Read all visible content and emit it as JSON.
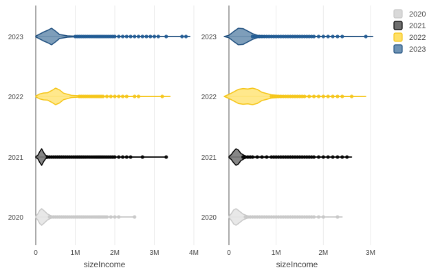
{
  "chart_data": {
    "type": "violin",
    "categories": [
      "2020",
      "2021",
      "2022",
      "2023"
    ],
    "legend": {
      "position": "top-right",
      "entries": [
        {
          "label": "2020",
          "color": "#d9d9d9"
        },
        {
          "label": "2021",
          "color": "#6e6e6e"
        },
        {
          "label": "2022",
          "color": "#ffe066"
        },
        {
          "label": "2023",
          "color": "#6f93b4"
        }
      ]
    },
    "series_colors": {
      "2020": {
        "fill": "#e6e6e6",
        "line": "#c8c8c8",
        "point": "#c8c8c8"
      },
      "2021": {
        "fill": "#7a7a7a",
        "line": "#000000",
        "point": "#000000"
      },
      "2022": {
        "fill": "#ffe680",
        "line": "#f5c518",
        "point": "#f5c518"
      },
      "2023": {
        "fill": "#7093b3",
        "line": "#1f4f7f",
        "point": "#1f5a94"
      }
    },
    "panels": [
      {
        "xlabel": "sizeIncome",
        "xlim": [
          0,
          4000000
        ],
        "xticks": [
          {
            "value": 0,
            "label": "0"
          },
          {
            "value": 1000000,
            "label": "1M"
          },
          {
            "value": 2000000,
            "label": "2M"
          },
          {
            "value": 3000000,
            "label": "3M"
          },
          {
            "value": 4000000,
            "label": "4M"
          }
        ],
        "series": [
          {
            "category": "2020",
            "min": 0,
            "max": 2500000,
            "density": [
              [
                0,
                0.08
              ],
              [
                50000,
                0.35
              ],
              [
                100000,
                0.8
              ],
              [
                150000,
                1.0
              ],
              [
                200000,
                0.8
              ],
              [
                300000,
                0.35
              ],
              [
                400000,
                0.12
              ],
              [
                600000,
                0.06
              ],
              [
                800000,
                0.03
              ],
              [
                1000000,
                0.02
              ],
              [
                1500000,
                0.01
              ],
              [
                2500000,
                0
              ]
            ],
            "outliers": [
              350000,
              400000,
              450000,
              500000,
              550000,
              600000,
              650000,
              700000,
              750000,
              800000,
              850000,
              900000,
              950000,
              1000000,
              1050000,
              1100000,
              1150000,
              1200000,
              1250000,
              1300000,
              1350000,
              1400000,
              1450000,
              1500000,
              1550000,
              1600000,
              1650000,
              1700000,
              1750000,
              1800000,
              1900000,
              2000000,
              2100000,
              2500000
            ]
          },
          {
            "category": "2021",
            "min": 0,
            "max": 3300000,
            "density": [
              [
                0,
                0.06
              ],
              [
                50000,
                0.2
              ],
              [
                100000,
                0.65
              ],
              [
                150000,
                1.0
              ],
              [
                200000,
                0.55
              ],
              [
                250000,
                0.2
              ],
              [
                350000,
                0.06
              ],
              [
                600000,
                0.03
              ],
              [
                1000000,
                0.02
              ],
              [
                2000000,
                0.01
              ],
              [
                3300000,
                0
              ]
            ],
            "outliers": [
              300000,
              350000,
              400000,
              450000,
              500000,
              550000,
              600000,
              650000,
              700000,
              750000,
              800000,
              850000,
              900000,
              950000,
              1000000,
              1050000,
              1100000,
              1150000,
              1200000,
              1250000,
              1300000,
              1350000,
              1400000,
              1450000,
              1500000,
              1550000,
              1600000,
              1650000,
              1700000,
              1750000,
              1800000,
              1850000,
              1900000,
              1950000,
              2000000,
              2100000,
              2200000,
              2300000,
              2400000,
              2700000,
              3300000
            ]
          },
          {
            "category": "2022",
            "min": 0,
            "max": 3400000,
            "density": [
              [
                0,
                0.05
              ],
              [
                100000,
                0.3
              ],
              [
                200000,
                0.42
              ],
              [
                300000,
                0.45
              ],
              [
                400000,
                0.7
              ],
              [
                500000,
                1.0
              ],
              [
                600000,
                0.8
              ],
              [
                700000,
                0.4
              ],
              [
                900000,
                0.13
              ],
              [
                1200000,
                0.05
              ],
              [
                2000000,
                0.02
              ],
              [
                3400000,
                0
              ]
            ],
            "outliers": [
              1100000,
              1150000,
              1200000,
              1250000,
              1300000,
              1350000,
              1400000,
              1450000,
              1500000,
              1550000,
              1600000,
              1650000,
              1700000,
              1800000,
              1900000,
              2000000,
              2100000,
              2200000,
              2300000,
              2500000,
              2600000,
              3200000
            ]
          },
          {
            "category": "2023",
            "min": 0,
            "max": 3900000,
            "density": [
              [
                0,
                0.05
              ],
              [
                100000,
                0.3
              ],
              [
                200000,
                0.55
              ],
              [
                300000,
                0.75
              ],
              [
                400000,
                1.0
              ],
              [
                500000,
                0.65
              ],
              [
                600000,
                0.25
              ],
              [
                800000,
                0.08
              ],
              [
                1000000,
                0.04
              ],
              [
                2000000,
                0.02
              ],
              [
                3900000,
                0
              ]
            ],
            "outliers": [
              1000000,
              1050000,
              1100000,
              1150000,
              1200000,
              1250000,
              1300000,
              1350000,
              1400000,
              1450000,
              1500000,
              1550000,
              1600000,
              1650000,
              1700000,
              1750000,
              1800000,
              1850000,
              1900000,
              1950000,
              2000000,
              2100000,
              2200000,
              2300000,
              2400000,
              2500000,
              2600000,
              2700000,
              2800000,
              2900000,
              3000000,
              3100000,
              3300000,
              3700000,
              3800000
            ]
          }
        ]
      },
      {
        "xlabel": "sizeIncome",
        "xlim": [
          0,
          3000000
        ],
        "xticks": [
          {
            "value": 0,
            "label": "0"
          },
          {
            "value": 1000000,
            "label": "1M"
          },
          {
            "value": 2000000,
            "label": "2M"
          },
          {
            "value": 3000000,
            "label": "3M"
          }
        ],
        "series": [
          {
            "category": "2020",
            "min": 0,
            "max": 2400000,
            "density": [
              [
                0,
                0.08
              ],
              [
                50000,
                0.4
              ],
              [
                100000,
                0.85
              ],
              [
                150000,
                1.0
              ],
              [
                200000,
                0.8
              ],
              [
                300000,
                0.35
              ],
              [
                400000,
                0.12
              ],
              [
                600000,
                0.06
              ],
              [
                1000000,
                0.02
              ],
              [
                1500000,
                0.01
              ],
              [
                2400000,
                0
              ]
            ],
            "outliers": [
              350000,
              400000,
              450000,
              500000,
              550000,
              600000,
              650000,
              700000,
              750000,
              800000,
              850000,
              900000,
              950000,
              1000000,
              1050000,
              1100000,
              1150000,
              1200000,
              1250000,
              1300000,
              1350000,
              1400000,
              1450000,
              1500000,
              1550000,
              1600000,
              1650000,
              1700000,
              1750000,
              1800000,
              1900000,
              2000000,
              2300000
            ]
          },
          {
            "category": "2021",
            "min": 0,
            "max": 2600000,
            "density": [
              [
                0,
                0.06
              ],
              [
                50000,
                0.3
              ],
              [
                100000,
                0.7
              ],
              [
                150000,
                1.0
              ],
              [
                200000,
                0.85
              ],
              [
                250000,
                0.45
              ],
              [
                350000,
                0.12
              ],
              [
                500000,
                0.05
              ],
              [
                1000000,
                0.02
              ],
              [
                2000000,
                0.01
              ],
              [
                2600000,
                0
              ]
            ],
            "outliers": [
              300000,
              350000,
              400000,
              450000,
              500000,
              600000,
              700000,
              800000,
              900000,
              950000,
              1000000,
              1050000,
              1100000,
              1150000,
              1200000,
              1250000,
              1300000,
              1350000,
              1400000,
              1450000,
              1500000,
              1550000,
              1600000,
              1650000,
              1700000,
              1750000,
              1800000,
              1900000,
              2000000,
              2100000,
              2200000,
              2300000,
              2400000,
              2500000
            ]
          },
          {
            "category": "2022",
            "min": -100000,
            "max": 2900000,
            "density": [
              [
                -100000,
                0
              ],
              [
                0,
                0.25
              ],
              [
                100000,
                0.55
              ],
              [
                200000,
                0.85
              ],
              [
                300000,
                0.95
              ],
              [
                400000,
                0.9
              ],
              [
                500000,
                1.0
              ],
              [
                600000,
                0.85
              ],
              [
                700000,
                0.5
              ],
              [
                900000,
                0.2
              ],
              [
                1200000,
                0.07
              ],
              [
                2000000,
                0.02
              ],
              [
                2900000,
                0
              ]
            ],
            "outliers": [
              900000,
              950000,
              1000000,
              1050000,
              1100000,
              1150000,
              1200000,
              1250000,
              1300000,
              1350000,
              1400000,
              1450000,
              1500000,
              1550000,
              1600000,
              1700000,
              1800000,
              1900000,
              2000000,
              2100000,
              2200000,
              2300000,
              2400000,
              2600000
            ]
          },
          {
            "category": "2023",
            "min": -100000,
            "max": 3050000,
            "density": [
              [
                -100000,
                0
              ],
              [
                0,
                0.15
              ],
              [
                100000,
                0.6
              ],
              [
                200000,
                1.0
              ],
              [
                300000,
                0.95
              ],
              [
                400000,
                0.65
              ],
              [
                500000,
                0.35
              ],
              [
                600000,
                0.15
              ],
              [
                800000,
                0.06
              ],
              [
                1000000,
                0.03
              ],
              [
                2000000,
                0.015
              ],
              [
                3050000,
                0
              ]
            ],
            "outliers": [
              500000,
              550000,
              600000,
              650000,
              700000,
              750000,
              800000,
              850000,
              900000,
              950000,
              1000000,
              1050000,
              1100000,
              1150000,
              1200000,
              1250000,
              1300000,
              1350000,
              1400000,
              1450000,
              1500000,
              1550000,
              1600000,
              1650000,
              1700000,
              1750000,
              1800000,
              1900000,
              2000000,
              2100000,
              2200000,
              2300000,
              2400000,
              2900000
            ]
          }
        ]
      }
    ]
  }
}
